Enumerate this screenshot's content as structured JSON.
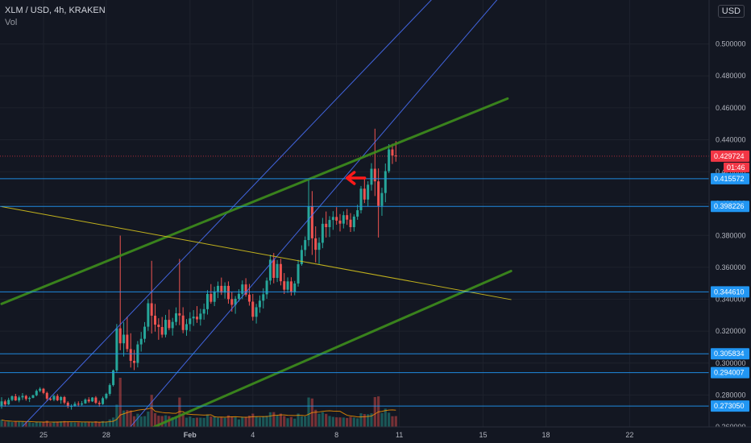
{
  "header": {
    "symbol": "XLM / USD, 4h, KRAKEN",
    "volume_label": "Vol",
    "currency_button": "USD"
  },
  "colors": {
    "background": "#131722",
    "up": "#26a69a",
    "down": "#ef5350",
    "channel": "#4a72ff",
    "trend_green": "#3e8e1c",
    "trend_yellow": "#d4c21c",
    "hline": "#2196f3",
    "price_tag": "#f23645",
    "level_tag": "#2196f3",
    "arrow": "#ff1a1a"
  },
  "chart_data": {
    "type": "candlestick",
    "symbol": "XLM / USD",
    "interval": "4h",
    "exchange": "KRAKEN",
    "ylim": [
      0.26,
      0.52
    ],
    "y_ticks": [
      "0.500000",
      "0.480000",
      "0.460000",
      "0.440000",
      "0.420000",
      "0.400000",
      "0.380000",
      "0.360000",
      "0.340000",
      "0.320000",
      "0.300000",
      "0.280000",
      "0.260000"
    ],
    "x_ticks": [
      {
        "label": "25",
        "i": 12
      },
      {
        "label": "28",
        "i": 30
      },
      {
        "label": "Feb",
        "i": 54
      },
      {
        "label": "4",
        "i": 72
      },
      {
        "label": "8",
        "i": 96
      },
      {
        "label": "11",
        "i": 114
      },
      {
        "label": "15",
        "i": 138
      },
      {
        "label": "18",
        "i": 156
      },
      {
        "label": "22",
        "i": 180
      }
    ],
    "last_price": {
      "value": "0.429724",
      "countdown": "01:46",
      "price": 0.429724
    },
    "horizontal_levels": [
      {
        "label": "0.415572",
        "price": 0.415572
      },
      {
        "label": "0.398226",
        "price": 0.398226
      },
      {
        "label": "0.344610",
        "price": 0.34461
      },
      {
        "label": "0.305834",
        "price": 0.305834
      },
      {
        "label": "0.294007",
        "price": 0.294007
      },
      {
        "label": "0.273050",
        "price": 0.27305
      }
    ],
    "trend_lines": [
      {
        "style": "channel",
        "from": {
          "i": 0,
          "p": 0.2466
        },
        "to": {
          "i": 126,
          "p": 0.5341
        }
      },
      {
        "style": "channel",
        "from": {
          "i": 32,
          "p": 0.2475
        },
        "to": {
          "i": 144,
          "p": 0.5328
        }
      },
      {
        "style": "green",
        "from": {
          "i": 0,
          "p": 0.3371
        },
        "to": {
          "i": 145,
          "p": 0.4658
        }
      },
      {
        "style": "green",
        "from": {
          "i": 41,
          "p": 0.2574
        },
        "to": {
          "i": 146,
          "p": 0.3577
        }
      },
      {
        "style": "yellow",
        "from": {
          "i": 0,
          "p": 0.3981
        },
        "to": {
          "i": 146,
          "p": 0.3398
        }
      }
    ],
    "arrow": {
      "i": 99,
      "p": 0.416
    },
    "candles": [
      [
        0.2733,
        0.2786,
        0.2714,
        0.276
      ],
      [
        0.276,
        0.2771,
        0.2727,
        0.2741
      ],
      [
        0.2741,
        0.2783,
        0.2737,
        0.2769
      ],
      [
        0.2769,
        0.2797,
        0.2761,
        0.2792
      ],
      [
        0.2792,
        0.2807,
        0.2763,
        0.2766
      ],
      [
        0.2766,
        0.2796,
        0.2754,
        0.2785
      ],
      [
        0.2785,
        0.2812,
        0.2769,
        0.2794
      ],
      [
        0.2794,
        0.2801,
        0.2764,
        0.2775
      ],
      [
        0.2775,
        0.279,
        0.2756,
        0.2782
      ],
      [
        0.2782,
        0.2802,
        0.2779,
        0.2798
      ],
      [
        0.2798,
        0.2835,
        0.2792,
        0.2826
      ],
      [
        0.2826,
        0.2849,
        0.2817,
        0.2839
      ],
      [
        0.2839,
        0.2844,
        0.2805,
        0.2813
      ],
      [
        0.2813,
        0.2821,
        0.2763,
        0.2777
      ],
      [
        0.2777,
        0.2788,
        0.2764,
        0.277
      ],
      [
        0.277,
        0.2801,
        0.2761,
        0.2794
      ],
      [
        0.2794,
        0.2806,
        0.2761,
        0.2767
      ],
      [
        0.2767,
        0.2793,
        0.2745,
        0.2787
      ],
      [
        0.2787,
        0.2794,
        0.2741,
        0.2752
      ],
      [
        0.2752,
        0.2761,
        0.2717,
        0.2729
      ],
      [
        0.2729,
        0.2742,
        0.2708,
        0.2731
      ],
      [
        0.2731,
        0.2758,
        0.2726,
        0.2745
      ],
      [
        0.2745,
        0.276,
        0.2727,
        0.274
      ],
      [
        0.274,
        0.2762,
        0.2732,
        0.2747
      ],
      [
        0.2747,
        0.2779,
        0.2744,
        0.2771
      ],
      [
        0.2771,
        0.2786,
        0.275,
        0.276
      ],
      [
        0.276,
        0.2787,
        0.2756,
        0.2784
      ],
      [
        0.2784,
        0.2793,
        0.2743,
        0.2751
      ],
      [
        0.2751,
        0.2764,
        0.2726,
        0.2743
      ],
      [
        0.2743,
        0.279,
        0.2738,
        0.278
      ],
      [
        0.278,
        0.2814,
        0.2771,
        0.2807
      ],
      [
        0.2807,
        0.2873,
        0.2795,
        0.2862
      ],
      [
        0.2862,
        0.296,
        0.2853,
        0.2954
      ],
      [
        0.2954,
        0.3245,
        0.294,
        0.3218
      ],
      [
        0.3218,
        0.3799,
        0.308,
        0.3124
      ],
      [
        0.3124,
        0.3256,
        0.3041,
        0.3178
      ],
      [
        0.3178,
        0.3291,
        0.307,
        0.3088
      ],
      [
        0.3088,
        0.3187,
        0.2972,
        0.3014
      ],
      [
        0.3014,
        0.3083,
        0.2956,
        0.3001
      ],
      [
        0.3001,
        0.3138,
        0.2973,
        0.3117
      ],
      [
        0.3117,
        0.3195,
        0.3072,
        0.3152
      ],
      [
        0.3152,
        0.3257,
        0.3129,
        0.3228
      ],
      [
        0.3228,
        0.3401,
        0.3202,
        0.3375
      ],
      [
        0.3375,
        0.3641,
        0.3185,
        0.3297
      ],
      [
        0.3297,
        0.3371,
        0.3197,
        0.3241
      ],
      [
        0.3241,
        0.3281,
        0.3146,
        0.3226
      ],
      [
        0.3226,
        0.3289,
        0.3159,
        0.3178
      ],
      [
        0.3178,
        0.3302,
        0.3161,
        0.3271
      ],
      [
        0.3271,
        0.3335,
        0.3206,
        0.3219
      ],
      [
        0.3219,
        0.3283,
        0.3172,
        0.3258
      ],
      [
        0.3258,
        0.3349,
        0.3236,
        0.3312
      ],
      [
        0.3312,
        0.3653,
        0.3238,
        0.3298
      ],
      [
        0.3298,
        0.335,
        0.3187,
        0.3207
      ],
      [
        0.3207,
        0.3276,
        0.3171,
        0.3244
      ],
      [
        0.3244,
        0.3319,
        0.3199,
        0.328
      ],
      [
        0.328,
        0.3332,
        0.3233,
        0.3291
      ],
      [
        0.3291,
        0.3357,
        0.3252,
        0.3274
      ],
      [
        0.3274,
        0.334,
        0.3235,
        0.331
      ],
      [
        0.331,
        0.3373,
        0.3272,
        0.3338
      ],
      [
        0.3338,
        0.3457,
        0.3304,
        0.3433
      ],
      [
        0.3433,
        0.3495,
        0.3372,
        0.3384
      ],
      [
        0.3384,
        0.3479,
        0.3357,
        0.3449
      ],
      [
        0.3449,
        0.3511,
        0.3407,
        0.3484
      ],
      [
        0.3484,
        0.3536,
        0.3427,
        0.3442
      ],
      [
        0.3442,
        0.3506,
        0.3404,
        0.3484
      ],
      [
        0.3484,
        0.3512,
        0.3372,
        0.3401
      ],
      [
        0.3401,
        0.3446,
        0.3322,
        0.3365
      ],
      [
        0.3365,
        0.342,
        0.3309,
        0.3403
      ],
      [
        0.3403,
        0.3463,
        0.3385,
        0.3434
      ],
      [
        0.3434,
        0.3518,
        0.3401,
        0.3493
      ],
      [
        0.3493,
        0.3532,
        0.3416,
        0.3429
      ],
      [
        0.3429,
        0.3496,
        0.336,
        0.3385
      ],
      [
        0.3385,
        0.3433,
        0.3266,
        0.329
      ],
      [
        0.329,
        0.3371,
        0.3248,
        0.335
      ],
      [
        0.335,
        0.3424,
        0.3315,
        0.3391
      ],
      [
        0.3391,
        0.3469,
        0.3342,
        0.3431
      ],
      [
        0.3431,
        0.3536,
        0.3403,
        0.3517
      ],
      [
        0.3517,
        0.3679,
        0.3491,
        0.3648
      ],
      [
        0.3648,
        0.369,
        0.35,
        0.3534
      ],
      [
        0.3534,
        0.3646,
        0.3508,
        0.3621
      ],
      [
        0.3621,
        0.3654,
        0.3487,
        0.3513
      ],
      [
        0.3513,
        0.3564,
        0.3433,
        0.346
      ],
      [
        0.346,
        0.3537,
        0.344,
        0.3512
      ],
      [
        0.3512,
        0.3538,
        0.3423,
        0.3447
      ],
      [
        0.3447,
        0.3515,
        0.3425,
        0.3499
      ],
      [
        0.3499,
        0.3647,
        0.3479,
        0.362
      ],
      [
        0.362,
        0.3738,
        0.361,
        0.3709
      ],
      [
        0.3709,
        0.3794,
        0.367,
        0.3771
      ],
      [
        0.3771,
        0.4148,
        0.3733,
        0.3982
      ],
      [
        0.3982,
        0.4078,
        0.3678,
        0.3782
      ],
      [
        0.3782,
        0.3857,
        0.3631,
        0.371
      ],
      [
        0.371,
        0.3788,
        0.3622,
        0.3754
      ],
      [
        0.3754,
        0.391,
        0.372,
        0.3873
      ],
      [
        0.3873,
        0.395,
        0.3787,
        0.3852
      ],
      [
        0.3852,
        0.3921,
        0.379,
        0.3897
      ],
      [
        0.3897,
        0.3952,
        0.3835,
        0.3916
      ],
      [
        0.3916,
        0.3977,
        0.3867,
        0.3893
      ],
      [
        0.3893,
        0.3934,
        0.3825,
        0.3874
      ],
      [
        0.3874,
        0.3951,
        0.3844,
        0.3927
      ],
      [
        0.3927,
        0.3966,
        0.3866,
        0.3899
      ],
      [
        0.3899,
        0.394,
        0.3822,
        0.3852
      ],
      [
        0.3852,
        0.3932,
        0.3825,
        0.3918
      ],
      [
        0.3918,
        0.3993,
        0.3898,
        0.3958
      ],
      [
        0.3958,
        0.411,
        0.3938,
        0.4093
      ],
      [
        0.4093,
        0.4163,
        0.4003,
        0.4025
      ],
      [
        0.4025,
        0.414,
        0.3982,
        0.4118
      ],
      [
        0.4118,
        0.4253,
        0.4081,
        0.4218
      ],
      [
        0.4218,
        0.4469,
        0.4047,
        0.4139
      ],
      [
        0.4139,
        0.422,
        0.3787,
        0.3985
      ],
      [
        0.3985,
        0.4099,
        0.3923,
        0.4066
      ],
      [
        0.4066,
        0.4251,
        0.4008,
        0.4203
      ],
      [
        0.4203,
        0.4372,
        0.4191,
        0.4339
      ],
      [
        0.4339,
        0.4375,
        0.4248,
        0.4301
      ],
      [
        0.4301,
        0.4391,
        0.4262,
        0.4297
      ]
    ]
  }
}
